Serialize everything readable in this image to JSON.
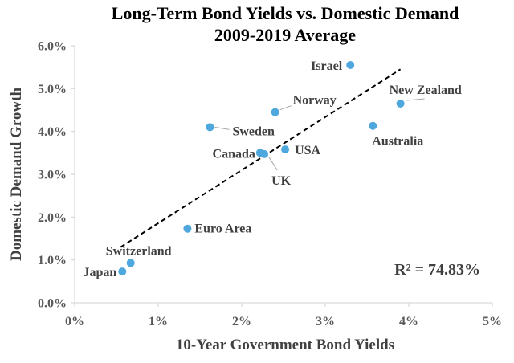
{
  "chart_data": {
    "type": "scatter",
    "title": "Long-Term Bond Yields vs. Domestic Demand",
    "subtitle": "2009-2019 Average",
    "xlabel": "10-Year Government Bond Yields",
    "ylabel": "Domestic Demand Growth",
    "xlim": [
      0,
      5
    ],
    "ylim": [
      0,
      6
    ],
    "x_ticks": [
      "0%",
      "1%",
      "2%",
      "3%",
      "4%",
      "5%"
    ],
    "y_ticks": [
      "0.0%",
      "1.0%",
      "2.0%",
      "3.0%",
      "4.0%",
      "5.0%",
      "6.0%"
    ],
    "grid": false,
    "points": [
      {
        "label": "Israel",
        "x": 3.3,
        "y": 5.55
      },
      {
        "label": "New Zealand",
        "x": 3.9,
        "y": 4.65
      },
      {
        "label": "Norway",
        "x": 2.4,
        "y": 4.45
      },
      {
        "label": "Sweden",
        "x": 1.62,
        "y": 4.1
      },
      {
        "label": "Australia",
        "x": 3.57,
        "y": 4.13
      },
      {
        "label": "USA",
        "x": 2.52,
        "y": 3.58
      },
      {
        "label": "Canada",
        "x": 2.22,
        "y": 3.5
      },
      {
        "label": "UK",
        "x": 2.27,
        "y": 3.47
      },
      {
        "label": "Euro Area",
        "x": 1.35,
        "y": 1.73
      },
      {
        "label": "Switzerland",
        "x": 0.67,
        "y": 0.93
      },
      {
        "label": "Japan",
        "x": 0.57,
        "y": 0.73
      }
    ],
    "trendline": {
      "x": [
        0.55,
        3.9
      ],
      "y": [
        1.3,
        5.45
      ],
      "style": "dashed"
    },
    "annotation": "R² = 74.83%",
    "colors": {
      "points": "#4ea7dd",
      "trendline": "#000000",
      "axes": "#d9d9d9"
    }
  }
}
